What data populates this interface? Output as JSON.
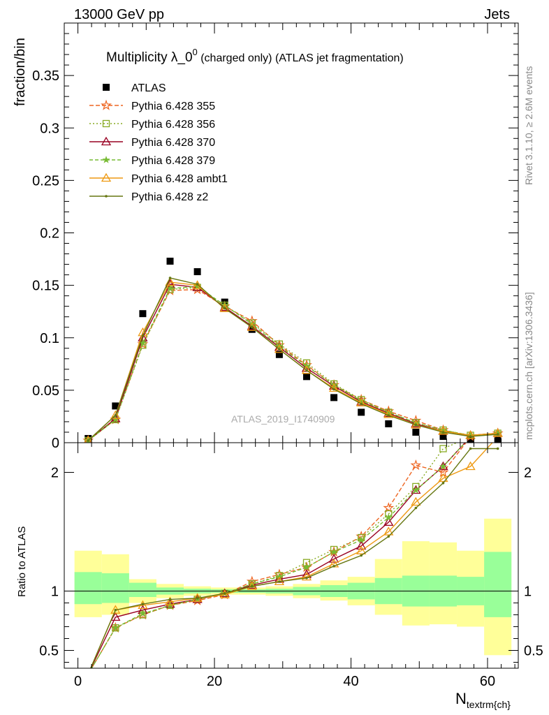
{
  "header": {
    "left": "13000 GeV pp",
    "right": "Jets"
  },
  "side_text": {
    "top": "Rivet 3.1.10, ≥ 2.6M events",
    "bottom": "mcplots.cern.ch [arXiv:1306.3436]"
  },
  "watermark": "ATLAS_2019_I1740909",
  "chart_data": [
    {
      "type": "scatter",
      "title": "Multiplicity λ_0",
      "title_sup": "0",
      "title_suffix": " (charged only) (ATLAS jet fragmentation)",
      "ylabel": "fraction/bin",
      "xlim": [
        -2,
        64.5
      ],
      "ylim": [
        0,
        0.4
      ],
      "yticks": [
        0,
        0.05,
        0.1,
        0.15,
        0.2,
        0.25,
        0.3,
        0.35
      ],
      "ytick_labels": [
        "0",
        "0.05",
        "0.1",
        "0.15",
        "0.2",
        "0.25",
        "0.3",
        "0.35"
      ],
      "x": [
        1.5,
        5.5,
        9.5,
        13.5,
        17.5,
        21.5,
        25.5,
        29.5,
        33.5,
        37.5,
        41.5,
        45.5,
        49.5,
        53.5,
        57.5,
        61.5
      ],
      "series": [
        {
          "name": "ATLAS",
          "color": "#000000",
          "marker": "square",
          "dash": "",
          "values": [
            0.004,
            0.035,
            0.123,
            0.173,
            0.163,
            0.134,
            0.108,
            0.084,
            0.063,
            0.043,
            0.029,
            0.018,
            0.01,
            0.006,
            0.003,
            0.003
          ]
        },
        {
          "name": "Pythia 6.428 355",
          "color": "#ee6622",
          "marker": "star",
          "dash": "6,3",
          "values": [
            0.002,
            0.022,
            0.094,
            0.145,
            0.146,
            0.13,
            0.116,
            0.093,
            0.074,
            0.055,
            0.041,
            0.03,
            0.021,
            0.012,
            0.006,
            0.009
          ]
        },
        {
          "name": "Pythia 6.428 356",
          "color": "#88aa22",
          "marker": "square-open",
          "dash": "2,3",
          "values": [
            0.002,
            0.022,
            0.093,
            0.146,
            0.148,
            0.131,
            0.114,
            0.094,
            0.076,
            0.056,
            0.041,
            0.029,
            0.019,
            0.012,
            0.007,
            0.009
          ]
        },
        {
          "name": "Pythia 6.428 370",
          "color": "#990022",
          "marker": "triangle-open",
          "dash": "",
          "values": [
            0.002,
            0.023,
            0.1,
            0.151,
            0.148,
            0.129,
            0.111,
            0.091,
            0.071,
            0.054,
            0.039,
            0.028,
            0.018,
            0.011,
            0.007,
            0.009
          ]
        },
        {
          "name": "Pythia 6.428 379",
          "color": "#77bb33",
          "marker": "star-small",
          "dash": "5,3",
          "values": [
            0.002,
            0.022,
            0.095,
            0.147,
            0.149,
            0.131,
            0.113,
            0.092,
            0.073,
            0.055,
            0.04,
            0.029,
            0.019,
            0.012,
            0.007,
            0.009
          ]
        },
        {
          "name": "Pythia 6.428 ambt1",
          "color": "#ee9911",
          "marker": "triangle-open",
          "dash": "",
          "values": [
            0.002,
            0.026,
            0.105,
            0.153,
            0.15,
            0.128,
            0.11,
            0.089,
            0.069,
            0.052,
            0.038,
            0.027,
            0.017,
            0.011,
            0.007,
            0.009
          ]
        },
        {
          "name": "Pythia 6.428 z2",
          "color": "#667711",
          "marker": "dot",
          "dash": "",
          "values": [
            0.002,
            0.026,
            0.102,
            0.157,
            0.151,
            0.128,
            0.11,
            0.089,
            0.069,
            0.051,
            0.037,
            0.026,
            0.017,
            0.01,
            0.006,
            0.008
          ]
        }
      ]
    },
    {
      "type": "line",
      "ylabel": "Ratio to ATLAS",
      "xlabel": "N",
      "xlabel_sub": "textrm{ch}",
      "xlim": [
        -2,
        64.5
      ],
      "ylim": [
        0.35,
        2.25
      ],
      "yticks": [
        0.5,
        1,
        2
      ],
      "ytick_labels": [
        "0.5",
        "1",
        "2"
      ],
      "xticks": [
        0,
        20,
        40,
        60
      ],
      "xtick_labels": [
        "0",
        "20",
        "40",
        "60"
      ],
      "band_edges": [
        -0.5,
        3.5,
        7.5,
        11.5,
        15.5,
        19.5,
        23.5,
        27.5,
        31.5,
        35.5,
        39.5,
        43.5,
        47.5,
        51.5,
        55.5,
        59.5,
        63.5
      ],
      "band_inner": [
        [
          0.89,
          1.16
        ],
        [
          0.9,
          1.15
        ],
        [
          0.95,
          1.07
        ],
        [
          0.97,
          1.03
        ],
        [
          0.98,
          1.02
        ],
        [
          0.985,
          1.015
        ],
        [
          0.985,
          1.015
        ],
        [
          0.98,
          1.02
        ],
        [
          0.965,
          1.035
        ],
        [
          0.95,
          1.05
        ],
        [
          0.93,
          1.07
        ],
        [
          0.89,
          1.11
        ],
        [
          0.87,
          1.13
        ],
        [
          0.87,
          1.13
        ],
        [
          0.88,
          1.12
        ],
        [
          0.78,
          1.33
        ]
      ],
      "band_outer": [
        [
          0.78,
          1.34
        ],
        [
          0.8,
          1.31
        ],
        [
          0.9,
          1.1
        ],
        [
          0.94,
          1.06
        ],
        [
          0.96,
          1.04
        ],
        [
          0.97,
          1.03
        ],
        [
          0.97,
          1.03
        ],
        [
          0.96,
          1.04
        ],
        [
          0.94,
          1.06
        ],
        [
          0.92,
          1.09
        ],
        [
          0.88,
          1.12
        ],
        [
          0.8,
          1.27
        ],
        [
          0.71,
          1.42
        ],
        [
          0.72,
          1.41
        ],
        [
          0.7,
          1.34
        ],
        [
          0.46,
          1.61
        ]
      ],
      "x": [
        1.5,
        5.5,
        9.5,
        13.5,
        17.5,
        21.5,
        25.5,
        29.5,
        33.5,
        37.5,
        41.5,
        45.5,
        49.5,
        53.5,
        57.5,
        61.5
      ],
      "series": [
        {
          "name": "Pythia 6.428 355",
          "color": "#ee6622",
          "marker": "star",
          "dash": "6,3",
          "values": [
            0.3,
            0.69,
            0.8,
            0.88,
            0.92,
            0.97,
            1.08,
            1.14,
            1.2,
            1.33,
            1.46,
            1.7,
            2.06,
            2.0,
            2.3,
            2.3
          ]
        },
        {
          "name": "Pythia 6.428 356",
          "color": "#88aa22",
          "marker": "square-open",
          "dash": "2,3",
          "values": [
            0.3,
            0.69,
            0.8,
            0.88,
            0.93,
            0.98,
            1.06,
            1.13,
            1.24,
            1.35,
            1.45,
            1.65,
            1.88,
            2.2,
            2.3,
            2.3
          ]
        },
        {
          "name": "Pythia 6.428 370",
          "color": "#990022",
          "marker": "triangle-open",
          "dash": "",
          "values": [
            0.3,
            0.78,
            0.84,
            0.89,
            0.93,
            0.98,
            1.05,
            1.1,
            1.14,
            1.27,
            1.38,
            1.58,
            1.85,
            2.05,
            2.3,
            2.3
          ]
        },
        {
          "name": "Pythia 6.428 379",
          "color": "#77bb33",
          "marker": "star-small",
          "dash": "5,3",
          "values": [
            0.3,
            0.69,
            0.81,
            0.88,
            0.93,
            0.98,
            1.06,
            1.12,
            1.2,
            1.33,
            1.43,
            1.62,
            1.85,
            2.05,
            2.3,
            2.3
          ]
        },
        {
          "name": "Pythia 6.428 ambt1",
          "color": "#ee9911",
          "marker": "triangle-open",
          "dash": "",
          "values": [
            0.3,
            0.84,
            0.88,
            0.91,
            0.94,
            0.97,
            1.04,
            1.08,
            1.12,
            1.23,
            1.34,
            1.5,
            1.75,
            1.95,
            2.05,
            2.3
          ]
        },
        {
          "name": "Pythia 6.428 z2",
          "color": "#667711",
          "marker": "dot",
          "dash": "",
          "values": [
            0.3,
            0.84,
            0.89,
            0.93,
            0.94,
            0.98,
            1.04,
            1.08,
            1.11,
            1.21,
            1.3,
            1.46,
            1.7,
            1.91,
            2.2,
            2.2
          ]
        }
      ]
    }
  ]
}
